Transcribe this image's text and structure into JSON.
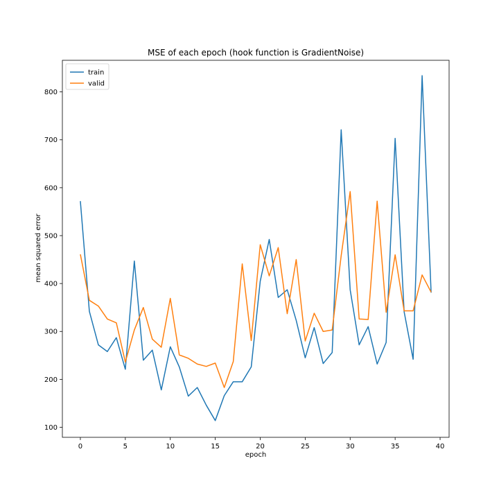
{
  "chart_data": {
    "type": "line",
    "title": "MSE of each epoch (hook function is GradientNoise)",
    "xlabel": "epoch",
    "ylabel": "mean squared error",
    "xlim": [
      -2,
      41
    ],
    "ylim": [
      79,
      866
    ],
    "xticks": [
      0,
      5,
      10,
      15,
      20,
      25,
      30,
      35,
      40
    ],
    "yticks": [
      100,
      200,
      300,
      400,
      500,
      600,
      700,
      800
    ],
    "grid": false,
    "legend_position": "top-left",
    "x": [
      0,
      1,
      2,
      3,
      4,
      5,
      6,
      7,
      8,
      9,
      10,
      11,
      12,
      13,
      14,
      15,
      16,
      17,
      18,
      19,
      20,
      21,
      22,
      23,
      24,
      25,
      26,
      27,
      28,
      29,
      30,
      31,
      32,
      33,
      34,
      35,
      36,
      37,
      38,
      39
    ],
    "series": [
      {
        "name": "train",
        "color": "#1f77b4",
        "values": [
          572,
          342,
          272,
          258,
          287,
          221,
          447,
          240,
          261,
          178,
          268,
          226,
          165,
          183,
          146,
          114,
          166,
          195,
          195,
          226,
          405,
          492,
          371,
          387,
          323,
          245,
          308,
          233,
          256,
          721,
          387,
          272,
          310,
          232,
          277,
          703,
          341,
          242,
          834,
          381
        ]
      },
      {
        "name": "valid",
        "color": "#ff7f0e",
        "values": [
          461,
          365,
          353,
          326,
          318,
          236,
          303,
          350,
          284,
          267,
          369,
          251,
          244,
          232,
          227,
          234,
          183,
          237,
          441,
          281,
          481,
          416,
          475,
          337,
          450,
          280,
          338,
          300,
          303,
          458,
          592,
          326,
          325,
          572,
          340,
          460,
          343,
          343,
          418,
          382
        ]
      }
    ]
  }
}
